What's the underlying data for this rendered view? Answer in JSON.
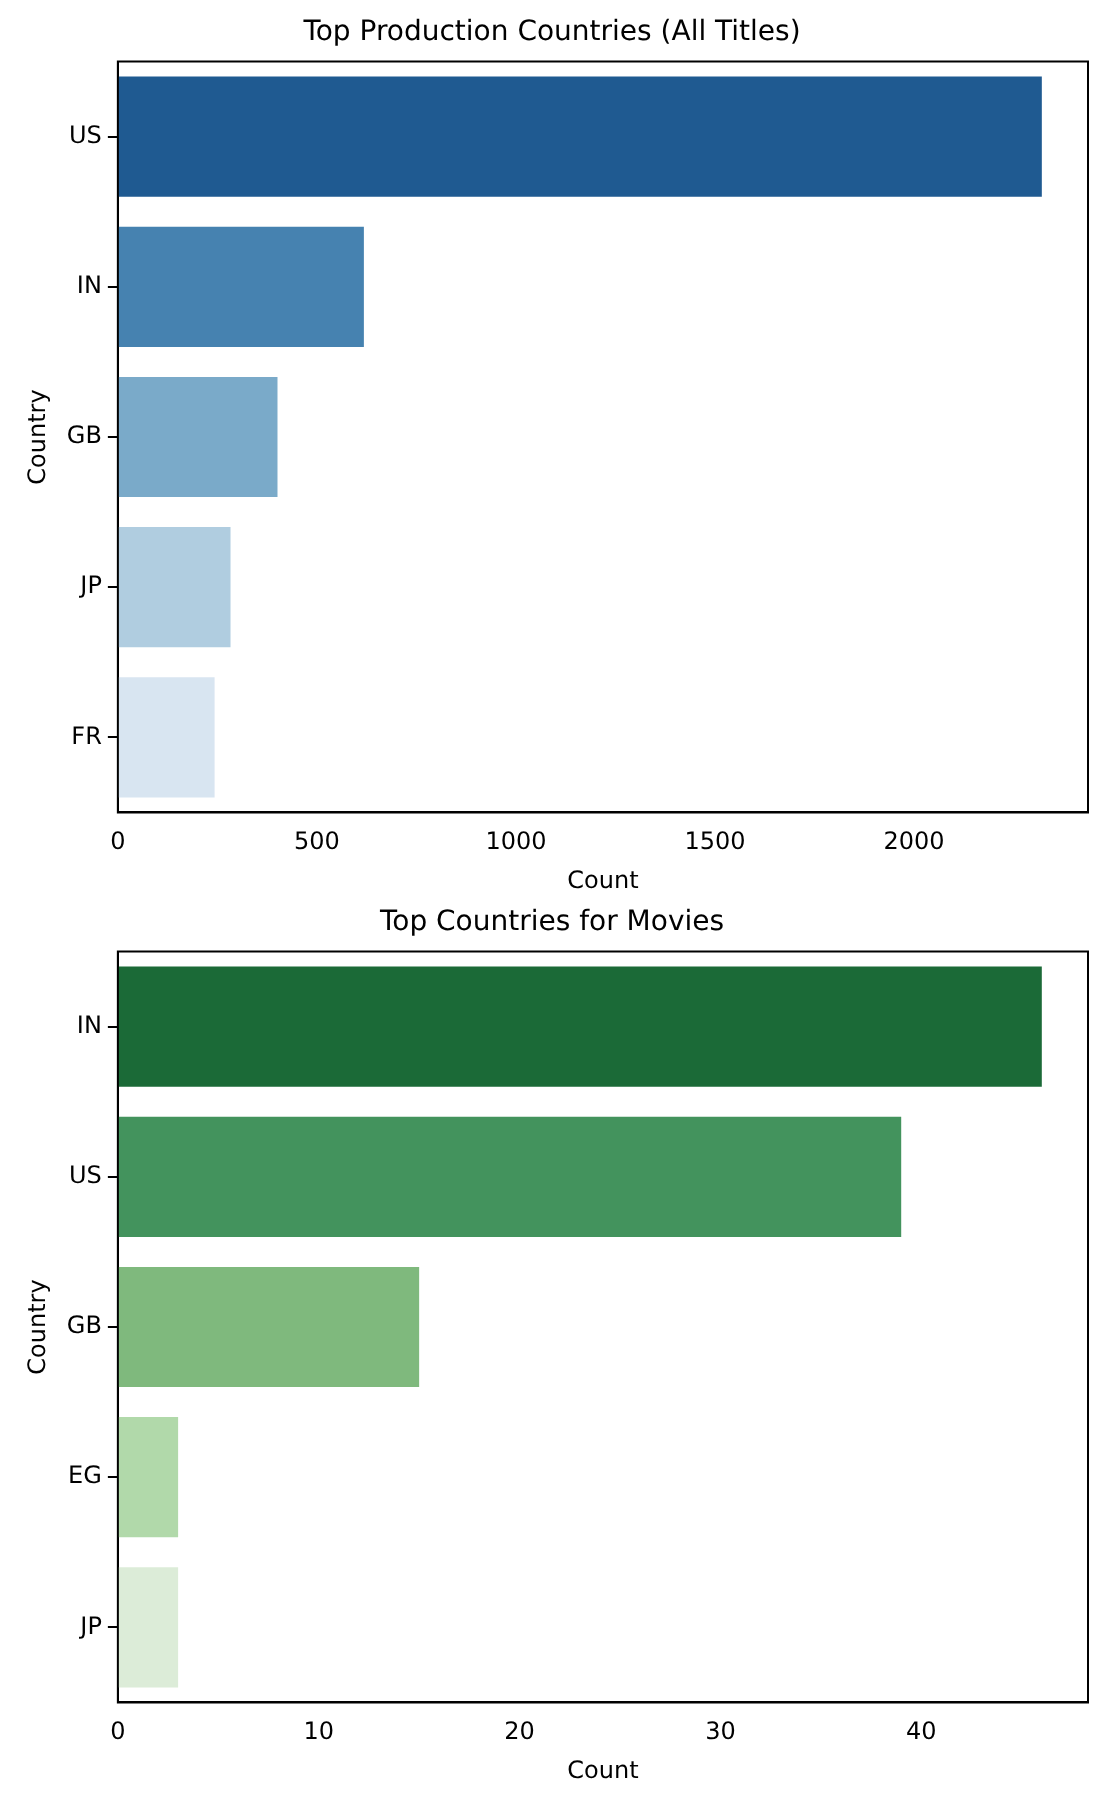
{
  "chart_data": [
    {
      "type": "bar",
      "orientation": "horizontal",
      "title": "Top Production Countries (All Titles)",
      "xlabel": "Count",
      "ylabel": "Country",
      "categories": [
        "US",
        "IN",
        "GB",
        "JP",
        "FR"
      ],
      "values": [
        2321,
        618,
        401,
        283,
        243
      ],
      "colors": [
        "#1f5a91",
        "#4682b0",
        "#7aaac9",
        "#b0cde0",
        "#d8e5f1"
      ],
      "xlim": [
        0,
        2437
      ],
      "xticks": [
        0,
        500,
        1000,
        1500,
        2000
      ],
      "grid": false,
      "legend": false
    },
    {
      "type": "bar",
      "orientation": "horizontal",
      "title": "Top Countries for Movies",
      "xlabel": "Count",
      "ylabel": "Country",
      "categories": [
        "IN",
        "US",
        "GB",
        "EG",
        "JP"
      ],
      "values": [
        46,
        39,
        15,
        3,
        3
      ],
      "colors": [
        "#1b6a37",
        "#43935d",
        "#7fb97d",
        "#b1d9aa",
        "#dcecd8"
      ],
      "xlim": [
        0,
        48.3
      ],
      "xticks": [
        0,
        10,
        20,
        30,
        40
      ],
      "grid": false,
      "legend": false
    }
  ]
}
